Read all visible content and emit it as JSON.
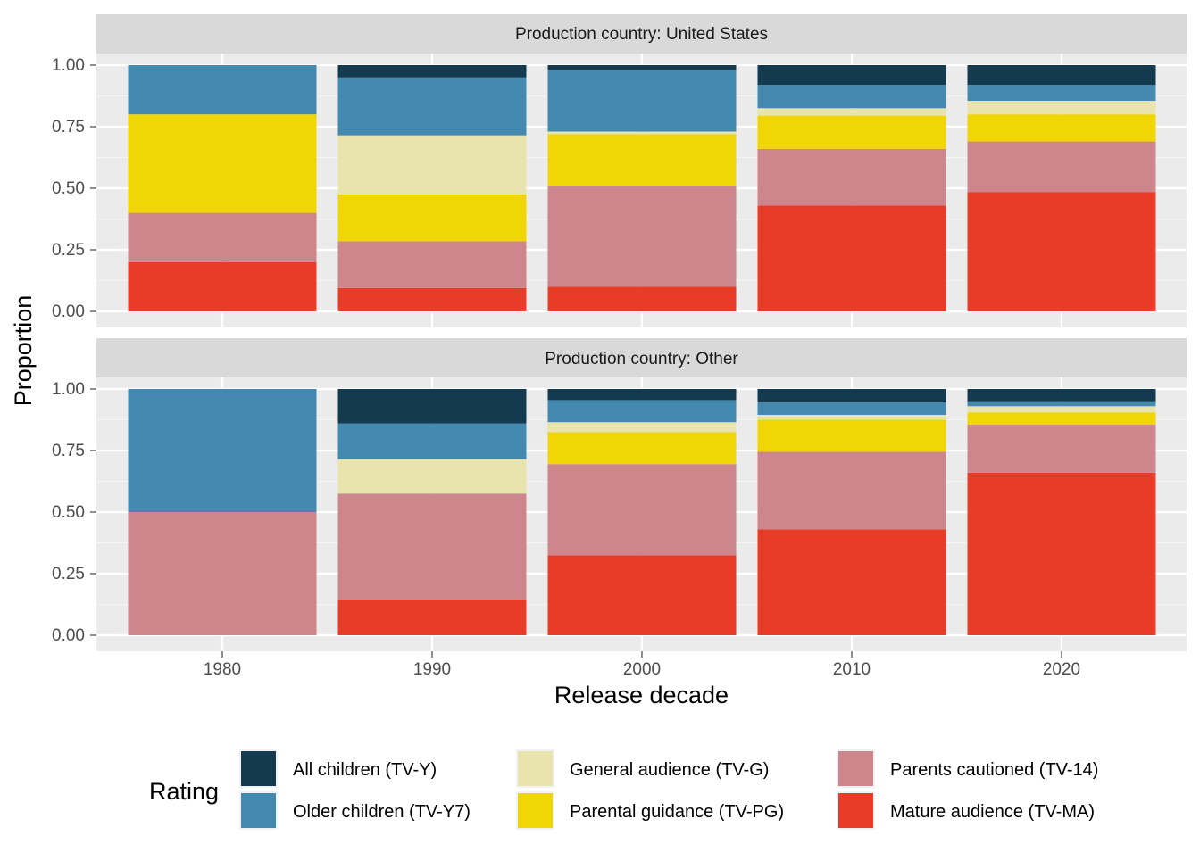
{
  "chart_data": {
    "type": "bar",
    "stacked": true,
    "normalized": true,
    "xlabel": "Release decade",
    "ylabel": "Proportion",
    "categories": [
      "1980",
      "1990",
      "2000",
      "2010",
      "2020"
    ],
    "ylim": [
      0,
      1
    ],
    "y_ticks": [
      "0.00",
      "0.25",
      "0.50",
      "0.75",
      "1.00"
    ],
    "grid": true,
    "legend": {
      "title": "Rating",
      "position": "bottom",
      "items": [
        {
          "label": "All children (TV-Y)",
          "color": "#143A4F"
        },
        {
          "label": "Older children (TV-Y7)",
          "color": "#4489AF"
        },
        {
          "label": "General audience (TV-G)",
          "color": "#E9E4AD"
        },
        {
          "label": "Parental guidance (TV-PG)",
          "color": "#F0D605"
        },
        {
          "label": "Parents cautioned (TV-14)",
          "color": "#CD868B"
        },
        {
          "label": "Mature audience (TV-MA)",
          "color": "#E83B28"
        }
      ]
    },
    "panels": [
      {
        "strip": "Production country: United States",
        "series": [
          {
            "name": "Mature audience (TV-MA)",
            "values": [
              0.2,
              0.095,
              0.1,
              0.43,
              0.485
            ]
          },
          {
            "name": "Parents cautioned (TV-14)",
            "values": [
              0.2,
              0.19,
              0.41,
              0.23,
              0.205
            ]
          },
          {
            "name": "Parental guidance (TV-PG)",
            "values": [
              0.4,
              0.19,
              0.21,
              0.135,
              0.11
            ]
          },
          {
            "name": "General audience (TV-G)",
            "values": [
              0.0,
              0.24,
              0.01,
              0.03,
              0.055
            ]
          },
          {
            "name": "Older children (TV-Y7)",
            "values": [
              0.2,
              0.235,
              0.25,
              0.095,
              0.065
            ]
          },
          {
            "name": "All children (TV-Y)",
            "values": [
              0.0,
              0.05,
              0.02,
              0.08,
              0.08
            ]
          }
        ]
      },
      {
        "strip": "Production country: Other",
        "series": [
          {
            "name": "Mature audience (TV-MA)",
            "values": [
              0.0,
              0.145,
              0.325,
              0.43,
              0.66
            ]
          },
          {
            "name": "Parents cautioned (TV-14)",
            "values": [
              0.5,
              0.43,
              0.37,
              0.315,
              0.195
            ]
          },
          {
            "name": "Parental guidance (TV-PG)",
            "values": [
              0.0,
              0.0,
              0.13,
              0.13,
              0.05
            ]
          },
          {
            "name": "General audience (TV-G)",
            "values": [
              0.0,
              0.14,
              0.04,
              0.02,
              0.025
            ]
          },
          {
            "name": "Older children (TV-Y7)",
            "values": [
              0.5,
              0.145,
              0.09,
              0.05,
              0.02
            ]
          },
          {
            "name": "All children (TV-Y)",
            "values": [
              0.0,
              0.14,
              0.045,
              0.055,
              0.05
            ]
          }
        ]
      }
    ]
  }
}
